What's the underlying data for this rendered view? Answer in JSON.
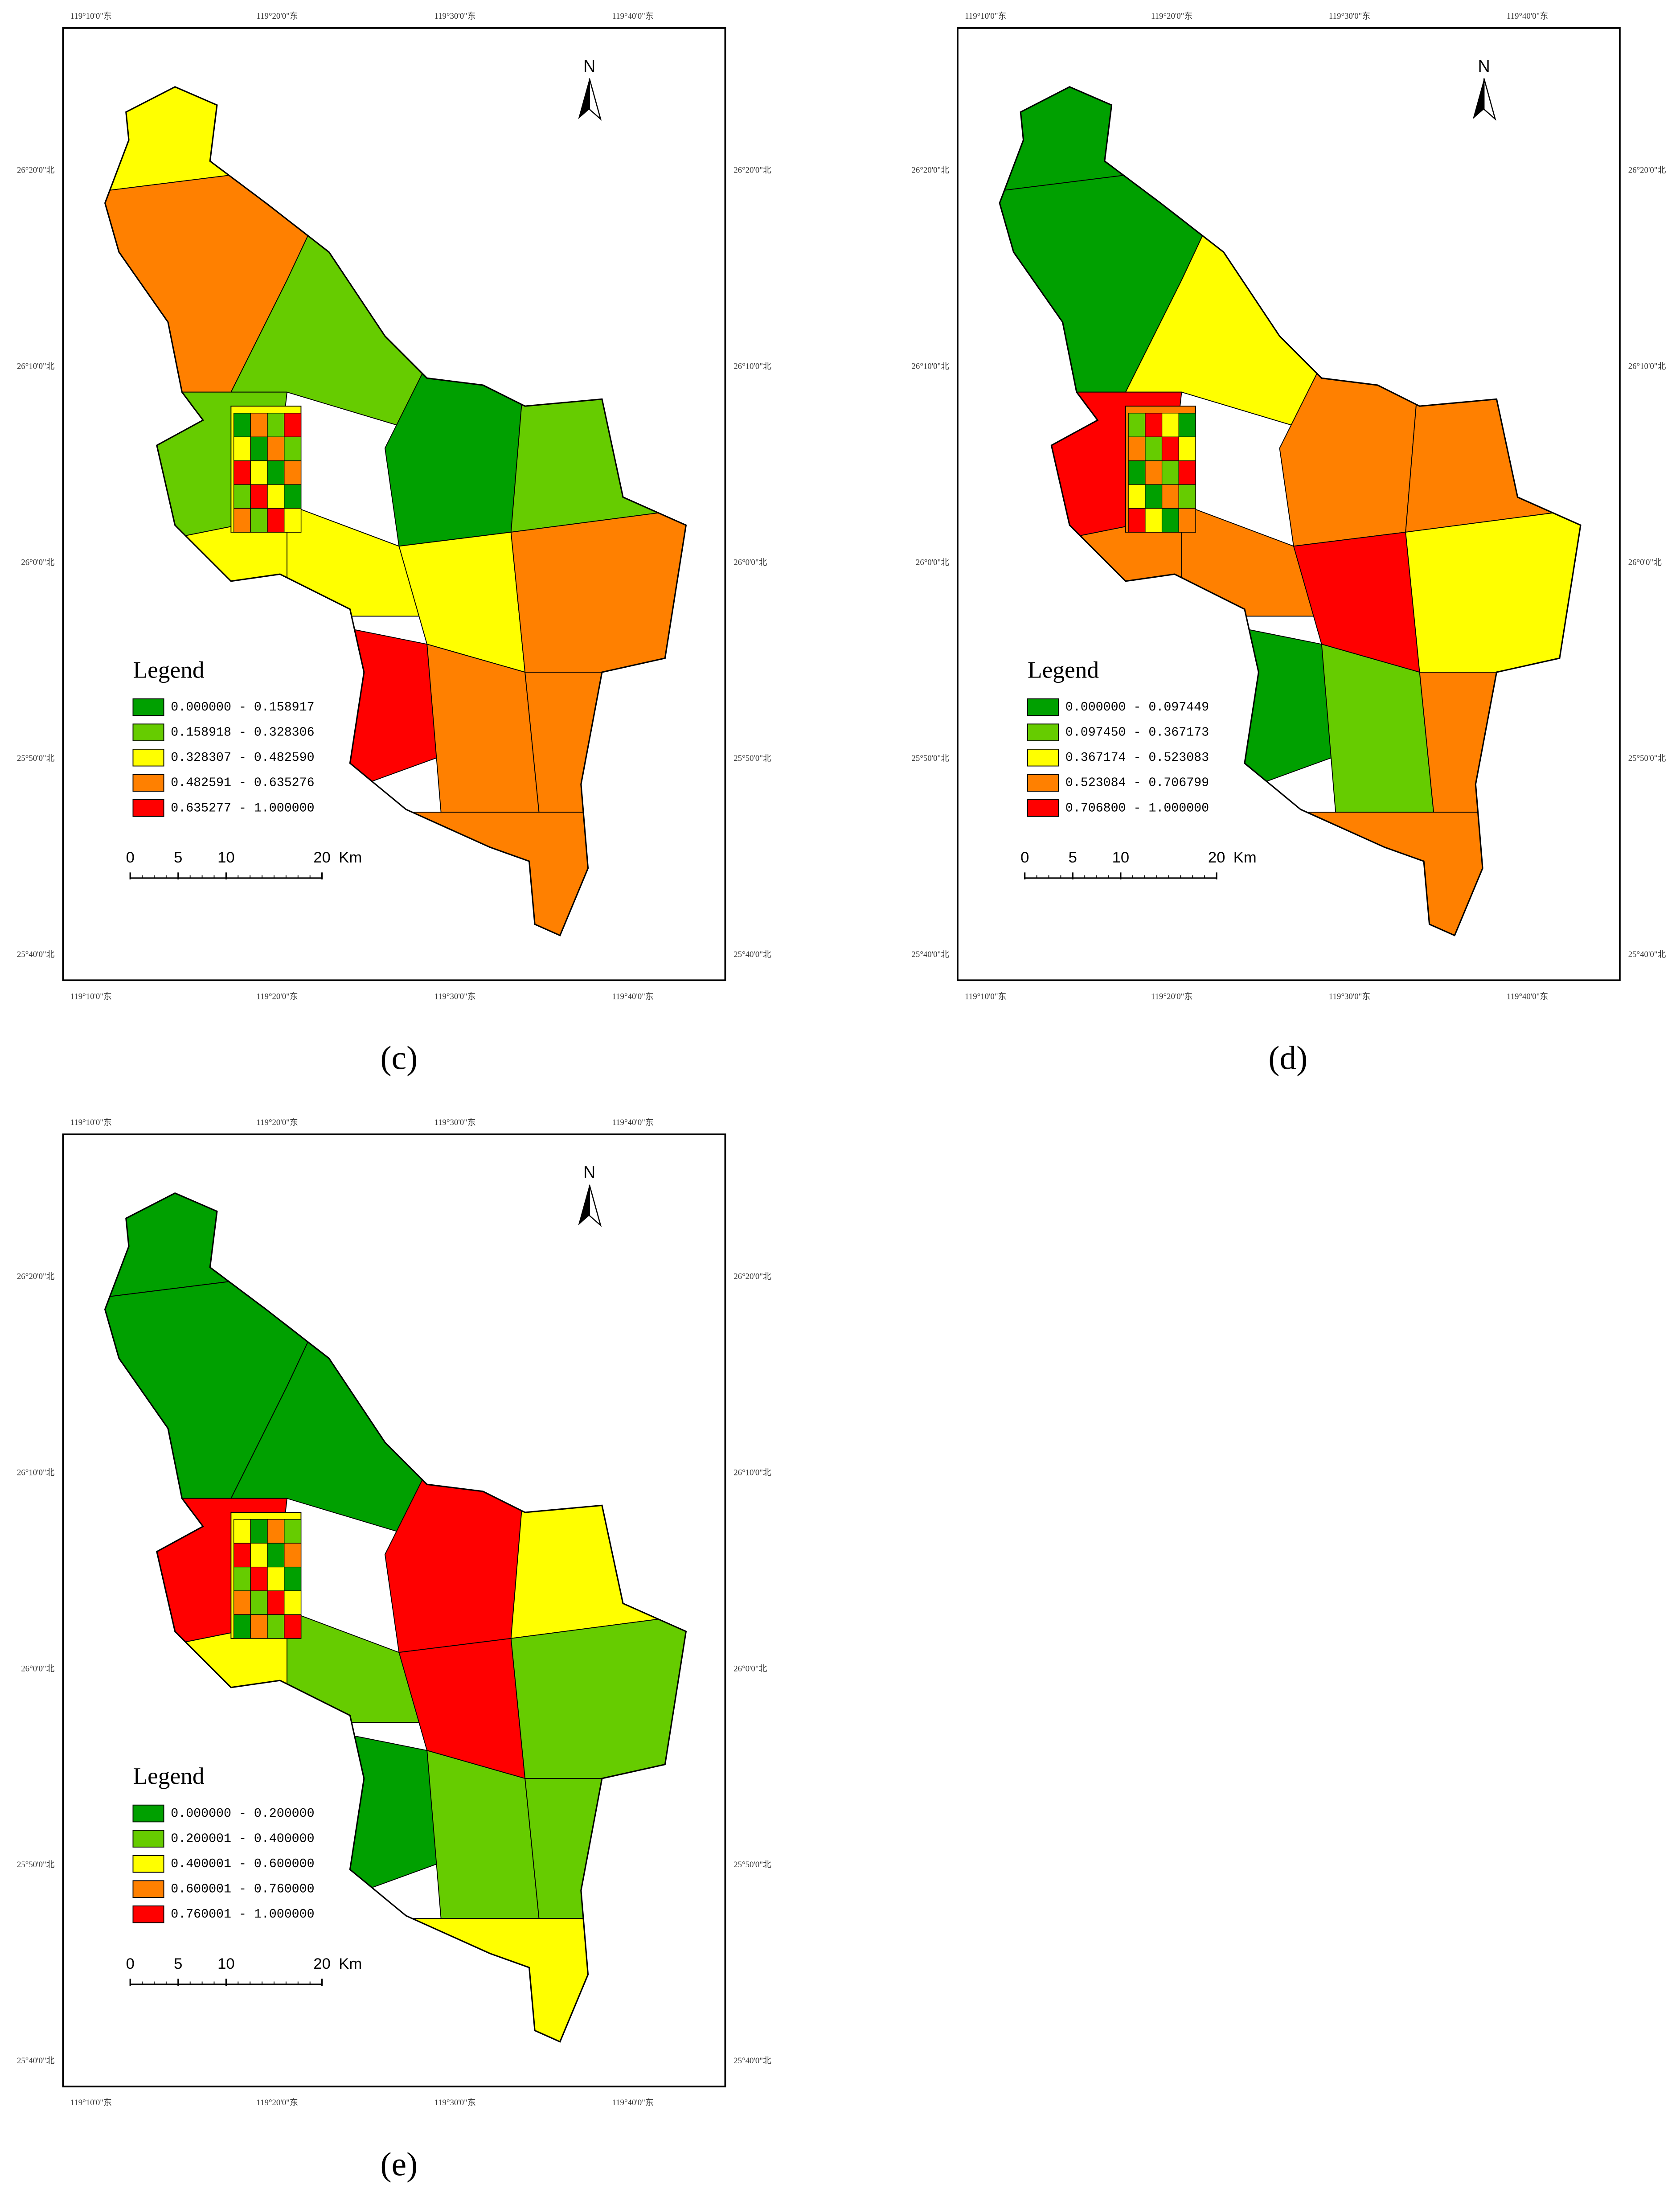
{
  "maps": [
    {
      "label": "(c)",
      "legend": {
        "title": "Legend",
        "classes": [
          "0.000000 - 0.158917",
          "0.158918 - 0.328306",
          "0.328307 - 0.482590",
          "0.482591 - 0.635276",
          "0.635277 - 1.000000"
        ]
      }
    },
    {
      "label": "(d)",
      "legend": {
        "title": "Legend",
        "classes": [
          "0.000000 - 0.097449",
          "0.097450 - 0.367173",
          "0.367174 - 0.523083",
          "0.523084 - 0.706799",
          "0.706800 - 1.000000"
        ]
      }
    },
    {
      "label": "(e)",
      "legend": {
        "title": "Legend",
        "classes": [
          "0.000000 - 0.200000",
          "0.200001 - 0.400000",
          "0.400001 - 0.600000",
          "0.600001 - 0.760000",
          "0.760001 - 1.000000"
        ]
      }
    }
  ],
  "class_colors": [
    "#00a000",
    "#66cc00",
    "#ffff00",
    "#ff8000",
    "#ff0000"
  ],
  "lon_labels": [
    "119°10'0\"东",
    "119°20'0\"东",
    "119°30'0\"东",
    "119°40'0\"东"
  ],
  "lat_labels": [
    "26°20'0\"北",
    "26°10'0\"北",
    "26°0'0\"北",
    "25°50'0\"北",
    "25°40'0\"北"
  ],
  "north": "N",
  "scale": {
    "ticks": [
      0,
      5,
      10,
      20
    ],
    "unit": "Km"
  }
}
